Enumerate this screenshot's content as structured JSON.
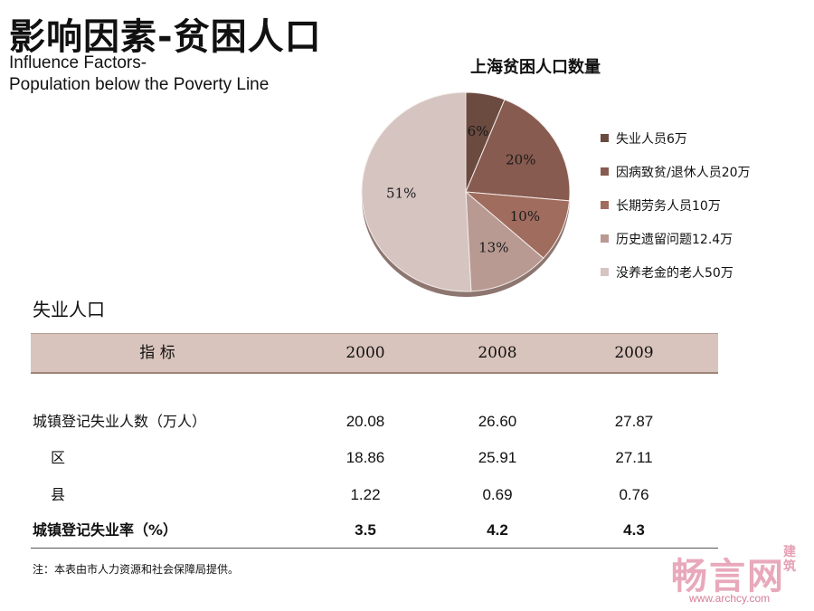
{
  "header": {
    "title_cn": "影响因素-贫困人口",
    "title_en_line1": "Influence Factors-",
    "title_en_line2": "Population below the Poverty Line"
  },
  "chart_data": {
    "type": "pie",
    "title": "上海贫困人口数量",
    "slices": [
      {
        "label": "失业人员6万",
        "value": 6,
        "percent_label": "6%",
        "color": "#6b4a40"
      },
      {
        "label": "因病致贫/退休人员20万",
        "value": 20,
        "percent_label": "20%",
        "color": "#875b4f"
      },
      {
        "label": "长期劳务人员10万",
        "value": 10,
        "percent_label": "10%",
        "color": "#a06c5e"
      },
      {
        "label": "历史遗留问题12.4万",
        "value": 12.4,
        "percent_label": "13%",
        "color": "#b89a93"
      },
      {
        "label": "没养老金的老人50万",
        "value": 50,
        "percent_label": "51%",
        "color": "#d5c4c0"
      }
    ],
    "legend_position": "right"
  },
  "section": {
    "title": "失业人口"
  },
  "table": {
    "headers": [
      "指 标",
      "2000",
      "2008",
      "2009"
    ],
    "rows": [
      {
        "label": "城镇登记失业人数（万人）",
        "values": [
          "20.08",
          "26.60",
          "27.87"
        ],
        "indent": false,
        "bold": false
      },
      {
        "label": "区",
        "values": [
          "18.86",
          "25.91",
          "27.11"
        ],
        "indent": true,
        "bold": false
      },
      {
        "label": "县",
        "values": [
          "1.22",
          "0.69",
          "0.76"
        ],
        "indent": true,
        "bold": false
      },
      {
        "label": "城镇登记失业率（%）",
        "values": [
          "3.5",
          "4.2",
          "4.3"
        ],
        "indent": false,
        "bold": true
      }
    ],
    "note": "注：本表由市人力资源和社会保障局提供。"
  },
  "watermark": {
    "brand": "畅言网",
    "side": "建筑",
    "url": "www.archcy.com"
  }
}
